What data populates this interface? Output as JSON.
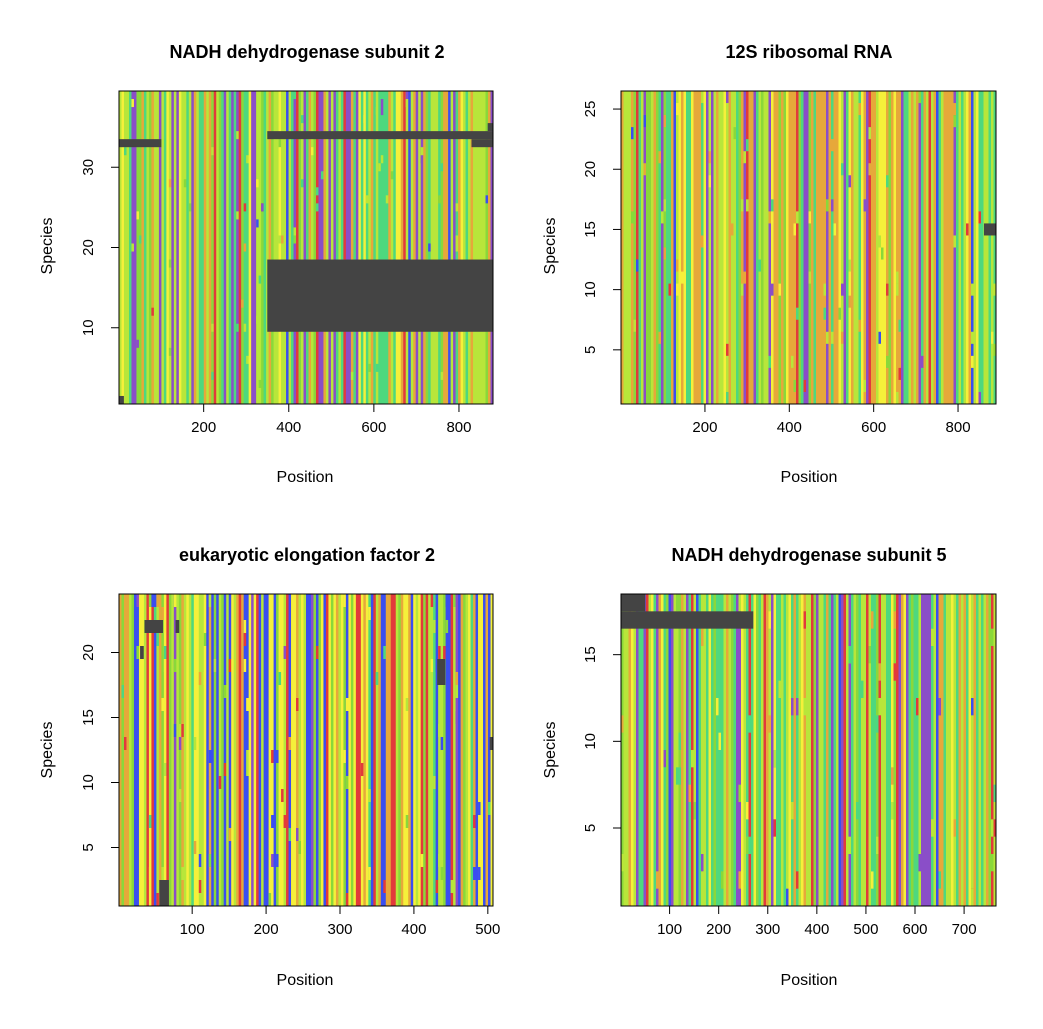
{
  "palette": {
    "A": "#e23a3a",
    "C": "#8ad83a",
    "G": "#3a4ef0",
    "T": "#f5f03a",
    "O": "#4ed87e",
    "P": "#8a4ec8",
    "L": "#b8e63a",
    "R": "#e6a83a",
    "gap": "#444444"
  },
  "chart_data": [
    {
      "type": "heatmap",
      "title": "NADH dehydrogenase subunit 2",
      "xlabel": "Position",
      "ylabel": "Species",
      "xlim": [
        1,
        880
      ],
      "ylim": [
        0.5,
        39.5
      ],
      "xticks": [
        200,
        400,
        600,
        800
      ],
      "yticks": [
        10,
        20,
        30
      ],
      "ncols": 880,
      "nrows": 39,
      "weights": {
        "L": 3,
        "O": 2,
        "P": 1.5,
        "R": 1.2,
        "A": 0.6,
        "G": 0.4,
        "T": 0.6,
        "C": 1
      },
      "gaps": [
        {
          "x0": 1,
          "x1": 100,
          "y0": 33,
          "y1": 33
        },
        {
          "x0": 350,
          "x1": 880,
          "y0": 34,
          "y1": 34
        },
        {
          "x0": 830,
          "x1": 880,
          "y0": 33,
          "y1": 33
        },
        {
          "x0": 868,
          "x1": 880,
          "y0": 35,
          "y1": 35
        },
        {
          "x0": 350,
          "x1": 880,
          "y0": 10,
          "y1": 18
        },
        {
          "x0": 1,
          "x1": 12,
          "y0": 1,
          "y1": 1
        }
      ]
    },
    {
      "type": "heatmap",
      "title": "12S ribosomal RNA",
      "xlabel": "Position",
      "ylabel": "Species",
      "xlim": [
        1,
        890
      ],
      "ylim": [
        0.5,
        26.5
      ],
      "xticks": [
        200,
        400,
        600,
        800
      ],
      "yticks": [
        5,
        10,
        15,
        20,
        25
      ],
      "ncols": 890,
      "nrows": 26,
      "weights": {
        "L": 2,
        "O": 2,
        "R": 2.5,
        "P": 1,
        "A": 0.5,
        "G": 0.4,
        "T": 0.8,
        "C": 1
      },
      "gaps": [
        {
          "x0": 862,
          "x1": 890,
          "y0": 15,
          "y1": 15
        }
      ]
    },
    {
      "type": "heatmap",
      "title": "eukaryotic elongation factor 2",
      "xlabel": "Position",
      "ylabel": "Species",
      "xlim": [
        1,
        507
      ],
      "ylim": [
        0.5,
        24.5
      ],
      "xticks": [
        100,
        200,
        300,
        400,
        500
      ],
      "yticks": [
        5,
        10,
        15,
        20
      ],
      "ncols": 507,
      "nrows": 24,
      "weights": {
        "G": 1.6,
        "T": 1.6,
        "L": 1.4,
        "A": 1,
        "R": 1,
        "C": 0.8,
        "O": 0.5,
        "P": 0.5
      },
      "gaps": [
        {
          "x0": 36,
          "x1": 60,
          "y0": 22,
          "y1": 22
        },
        {
          "x0": 56,
          "x1": 68,
          "y0": 1,
          "y1": 2
        },
        {
          "x0": 432,
          "x1": 442,
          "y0": 18,
          "y1": 19
        },
        {
          "x0": 503,
          "x1": 507,
          "y0": 13,
          "y1": 13
        },
        {
          "x0": 30,
          "x1": 34,
          "y0": 20,
          "y1": 20
        },
        {
          "x0": 78,
          "x1": 82,
          "y0": 22,
          "y1": 22
        }
      ]
    },
    {
      "type": "heatmap",
      "title": "NADH dehydrogenase subunit 5",
      "xlabel": "Position",
      "ylabel": "Species",
      "xlim": [
        1,
        765
      ],
      "ylim": [
        0.5,
        18.5
      ],
      "xticks": [
        100,
        200,
        300,
        400,
        500,
        600,
        700
      ],
      "yticks": [
        5,
        10,
        15
      ],
      "ncols": 765,
      "nrows": 18,
      "weights": {
        "L": 3,
        "O": 2,
        "P": 1.5,
        "R": 1.2,
        "A": 0.6,
        "G": 0.4,
        "T": 0.6,
        "C": 1
      },
      "gaps": [
        {
          "x0": 1,
          "x1": 270,
          "y0": 17,
          "y1": 17
        },
        {
          "x0": 1,
          "x1": 50,
          "y0": 18,
          "y1": 18
        }
      ]
    }
  ]
}
